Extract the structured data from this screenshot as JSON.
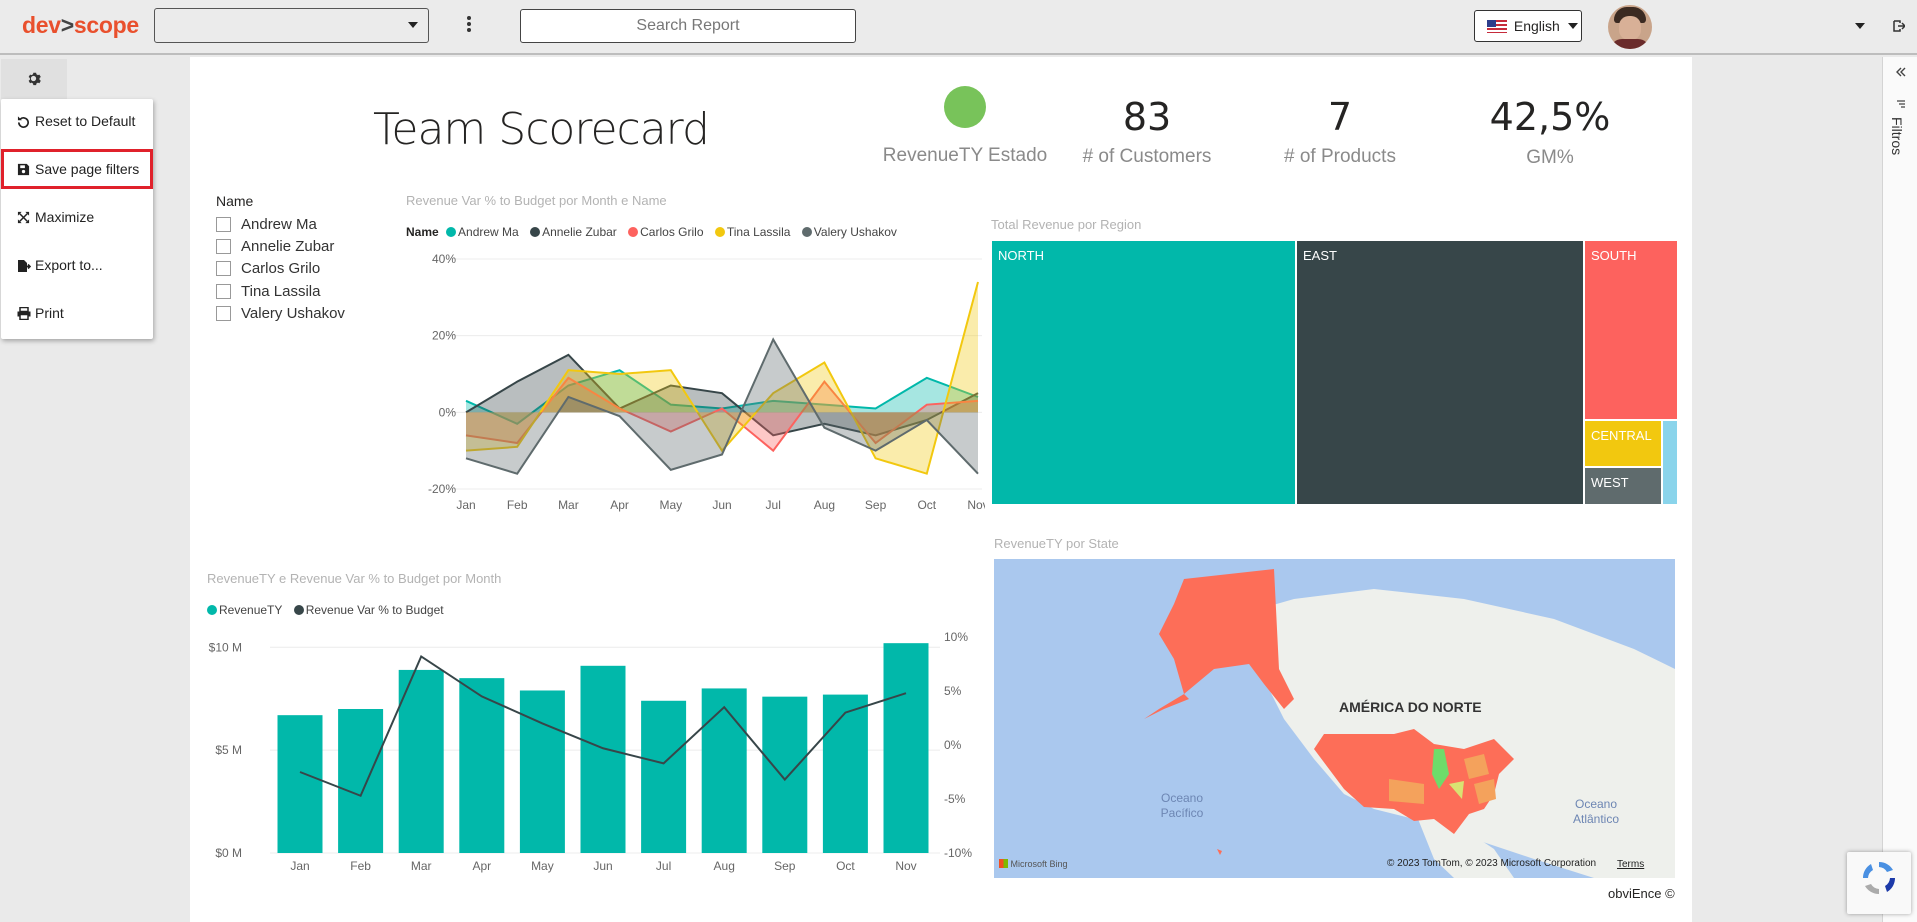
{
  "topbar": {
    "logo_main": "dev",
    "logo_sep": ">",
    "logo_end": "scope",
    "workspace_value": "",
    "search_placeholder": "Search Report",
    "language": "English"
  },
  "settings_menu": {
    "items": [
      {
        "label": "Reset to Default",
        "icon": "reset-icon"
      },
      {
        "label": "Save page filters",
        "icon": "save-icon",
        "highlighted": true
      },
      {
        "label": "Maximize",
        "icon": "maximize-icon"
      },
      {
        "label": "Export to...",
        "icon": "export-icon"
      },
      {
        "label": "Print",
        "icon": "print-icon"
      }
    ]
  },
  "report": {
    "title": "Team Scorecard",
    "kpis": [
      {
        "label": "RevenueTY Estado",
        "value": "",
        "status_color": "#78c35a"
      },
      {
        "label": "# of Customers",
        "value": "83"
      },
      {
        "label": "# of Products",
        "value": "7"
      },
      {
        "label": "GM%",
        "value": "42,5%"
      }
    ],
    "slicer": {
      "title": "Name",
      "items": [
        "Andrew Ma",
        "Annelie Zubar",
        "Carlos Grilo",
        "Tina Lassila",
        "Valery Ushakov"
      ]
    },
    "footer": "obviEnce ©"
  },
  "filters_pane": {
    "label": "Filtros"
  },
  "colors": {
    "accent": "#e9502d",
    "teal": "#01b8aa",
    "dark": "#374649",
    "red": "#fd625e",
    "yellow": "#f2c80f",
    "gray": "#5f6b6d",
    "lightblue": "#8ad4eb"
  },
  "chart_data": [
    {
      "type": "area",
      "title": "Revenue Var % to Budget por Month e Name",
      "legend_title": "Name",
      "categories": [
        "Jan",
        "Feb",
        "Mar",
        "Apr",
        "May",
        "Jun",
        "Jul",
        "Aug",
        "Sep",
        "Oct",
        "Nov"
      ],
      "y_ticks": [
        "40%",
        "20%",
        "0%",
        "-20%"
      ],
      "ylim": [
        -20,
        40
      ],
      "series": [
        {
          "name": "Andrew Ma",
          "color": "#01b8aa",
          "values": [
            3,
            -3,
            7,
            11,
            2,
            1,
            3,
            2,
            1,
            9,
            4
          ]
        },
        {
          "name": "Annelie Zubar",
          "color": "#374649",
          "values": [
            0,
            8,
            15,
            1,
            7,
            5,
            -6,
            -3,
            -6,
            -2,
            5
          ]
        },
        {
          "name": "Carlos Grilo",
          "color": "#fd625e",
          "values": [
            -6,
            -8,
            9,
            1,
            -5,
            1,
            -10,
            8,
            -8,
            2,
            3
          ]
        },
        {
          "name": "Tina Lassila",
          "color": "#f2c80f",
          "values": [
            -10,
            -9,
            11,
            10,
            11,
            -10,
            5,
            13,
            -12,
            -16,
            34
          ]
        },
        {
          "name": "Valery Ushakov",
          "color": "#5f6b6d",
          "values": [
            -12,
            -16,
            4,
            -1,
            -15,
            -11,
            19,
            -4,
            -10,
            -2,
            -16
          ]
        }
      ],
      "legend_position": "top-left"
    },
    {
      "type": "treemap",
      "title": "Total Revenue por Region",
      "items": [
        {
          "label": "NORTH",
          "color": "#01b8aa"
        },
        {
          "label": "EAST",
          "color": "#374649"
        },
        {
          "label": "SOUTH",
          "color": "#fd625e"
        },
        {
          "label": "CENTRAL",
          "color": "#f2c80f"
        },
        {
          "label": "WEST",
          "color": "#5f6b6d"
        },
        {
          "label": "",
          "color": "#8ad4eb"
        }
      ]
    },
    {
      "type": "bar",
      "title": "RevenueTY e Revenue Var % to Budget por Month",
      "categories": [
        "Jan",
        "Feb",
        "Mar",
        "Apr",
        "May",
        "Jun",
        "Jul",
        "Aug",
        "Sep",
        "Oct",
        "Nov"
      ],
      "y_ticks": [
        "$10 M",
        "$5 M",
        "$0 M"
      ],
      "y2_ticks": [
        "10%",
        "5%",
        "0%",
        "-5%",
        "-10%"
      ],
      "ylim": [
        0,
        10.5
      ],
      "y2lim": [
        -10,
        10
      ],
      "series": [
        {
          "name": "RevenueTY",
          "color": "#01b8aa",
          "values": [
            6.7,
            7.0,
            8.9,
            8.5,
            7.9,
            9.1,
            7.4,
            8.0,
            7.6,
            7.7,
            10.2
          ]
        },
        {
          "name": "Revenue Var % to Budget",
          "color": "#374649",
          "type": "line",
          "values": [
            -2.5,
            -4.7,
            8.2,
            4.5,
            2,
            -0.3,
            -1.7,
            3.5,
            -3.2,
            3,
            4.8
          ]
        }
      ],
      "legend_position": "top-left"
    },
    {
      "type": "map",
      "title": "RevenueTY por State",
      "labels": [
        "AMÉRICA DO NORTE",
        "Oceano Pacífico",
        "Oceano Atlântico"
      ],
      "attribution": "© 2023 TomTom, © 2023 Microsoft Corporation",
      "terms": "Terms",
      "provider": "Microsoft Bing"
    }
  ]
}
